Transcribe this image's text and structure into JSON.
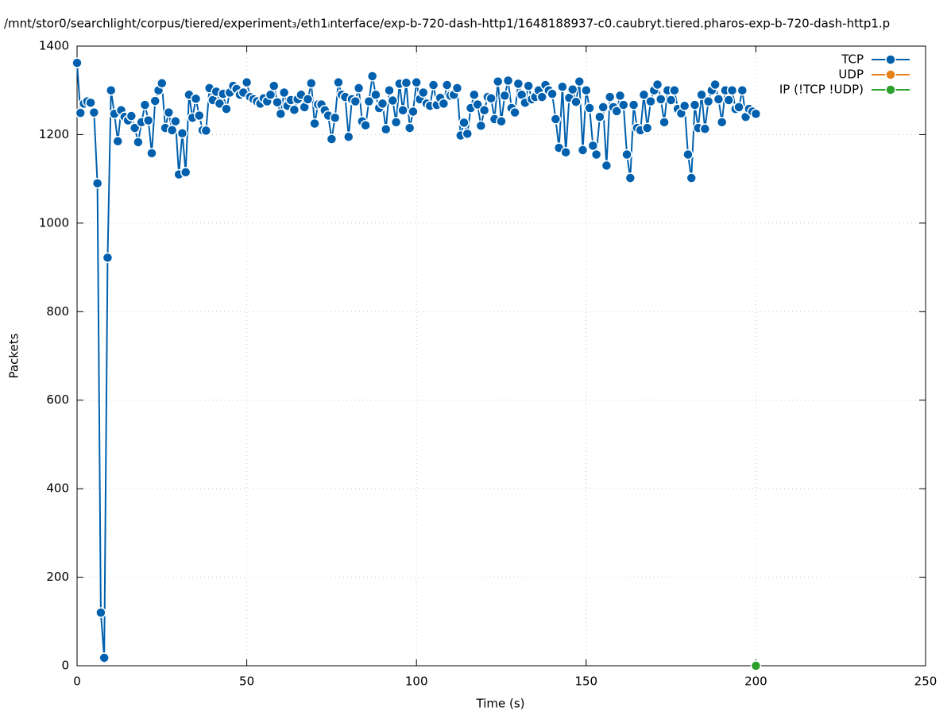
{
  "chart_data": {
    "type": "line",
    "title": "/mnt/stor0/searchlight/corpus/tiered/experiment₃/eth1ᵢnterface/exp-b-720-dash-http1/1648188937-c0.caubryt.tiered.pharos-exp-b-720-dash-http1.p",
    "x_label": "Time (s)",
    "y_label": "Packets",
    "xlim": [
      0,
      250
    ],
    "xticks": [
      0,
      50,
      100,
      150,
      200,
      250
    ],
    "ylim": [
      0,
      1400
    ],
    "yticks": [
      0,
      200,
      400,
      600,
      800,
      1000,
      1200,
      1400
    ],
    "grid": true,
    "legend": "top-right",
    "series": [
      {
        "name": "TCP",
        "color": "#0060ad",
        "x": [
          0,
          1,
          2,
          3,
          4,
          5,
          6,
          7,
          8,
          9,
          10,
          11,
          12,
          13,
          14,
          15,
          16,
          17,
          18,
          19,
          20,
          21,
          22,
          23,
          24,
          25,
          26,
          27,
          28,
          29,
          30,
          31,
          32,
          33,
          34,
          35,
          36,
          37,
          38,
          39,
          40,
          41,
          42,
          43,
          44,
          45,
          46,
          47,
          48,
          49,
          50,
          51,
          52,
          53,
          54,
          55,
          56,
          57,
          58,
          59,
          60,
          61,
          62,
          63,
          64,
          65,
          66,
          67,
          68,
          69,
          70,
          71,
          72,
          73,
          74,
          75,
          76,
          77,
          78,
          79,
          80,
          81,
          82,
          83,
          84,
          85,
          86,
          87,
          88,
          89,
          90,
          91,
          92,
          93,
          94,
          95,
          96,
          97,
          98,
          99,
          100,
          101,
          102,
          103,
          104,
          105,
          106,
          107,
          108,
          109,
          110,
          111,
          112,
          113,
          114,
          115,
          116,
          117,
          118,
          119,
          120,
          121,
          122,
          123,
          124,
          125,
          126,
          127,
          128,
          129,
          130,
          131,
          132,
          133,
          134,
          135,
          136,
          137,
          138,
          139,
          140,
          141,
          142,
          143,
          144,
          145,
          146,
          147,
          148,
          149,
          150,
          151,
          152,
          153,
          154,
          155,
          156,
          157,
          158,
          159,
          160,
          161,
          162,
          163,
          164,
          165,
          166,
          167,
          168,
          169,
          170,
          171,
          172,
          173,
          174,
          175,
          176,
          177,
          178,
          179,
          180,
          181,
          182,
          183,
          184,
          185,
          186,
          187,
          188,
          189,
          190,
          191,
          192,
          193,
          194,
          195,
          196,
          197,
          198,
          199,
          200
        ],
        "values": [
          1362,
          1249,
          1270,
          1275,
          1272,
          1250,
          1090,
          120,
          18,
          922,
          1300,
          1247,
          1185,
          1255,
          1240,
          1232,
          1242,
          1215,
          1183,
          1228,
          1267,
          1232,
          1158,
          1276,
          1300,
          1316,
          1215,
          1250,
          1210,
          1230,
          1110,
          1203,
          1115,
          1290,
          1238,
          1281,
          1243,
          1210,
          1209,
          1305,
          1278,
          1297,
          1270,
          1292,
          1258,
          1295,
          1310,
          1303,
          1290,
          1295,
          1318,
          1285,
          1280,
          1275,
          1270,
          1282,
          1275,
          1290,
          1310,
          1273,
          1247,
          1295,
          1265,
          1278,
          1256,
          1280,
          1290,
          1262,
          1280,
          1316,
          1225,
          1268,
          1268,
          1255,
          1243,
          1190,
          1238,
          1318,
          1290,
          1285,
          1195,
          1280,
          1275,
          1305,
          1230,
          1221,
          1275,
          1332,
          1290,
          1260,
          1270,
          1212,
          1300,
          1277,
          1228,
          1315,
          1255,
          1317,
          1215,
          1252,
          1318,
          1280,
          1295,
          1270,
          1265,
          1312,
          1267,
          1283,
          1270,
          1312,
          1288,
          1290,
          1305,
          1198,
          1227,
          1202,
          1260,
          1290,
          1268,
          1220,
          1255,
          1285,
          1282,
          1235,
          1320,
          1230,
          1288,
          1322,
          1260,
          1250,
          1315,
          1290,
          1272,
          1310,
          1280,
          1285,
          1300,
          1285,
          1312,
          1300,
          1292,
          1235,
          1170,
          1308,
          1160,
          1283,
          1302,
          1274,
          1320,
          1165,
          1300,
          1260,
          1175,
          1155,
          1240,
          1262,
          1130,
          1285,
          1262,
          1253,
          1288,
          1267,
          1155,
          1102,
          1267,
          1215,
          1210,
          1290,
          1215,
          1275,
          1300,
          1313,
          1280,
          1228,
          1300,
          1278,
          1300,
          1258,
          1248,
          1265,
          1155,
          1102,
          1267,
          1215,
          1290,
          1213,
          1275,
          1300,
          1313,
          1280,
          1228,
          1300,
          1278,
          1300,
          1258,
          1262,
          1300,
          1240,
          1258,
          1252,
          1247
        ]
      },
      {
        "name": "UDP",
        "color": "#e8801a",
        "x": [],
        "values": []
      },
      {
        "name": "IP (!TCP  !UDP)",
        "color": "#2ca02c",
        "x": [
          200
        ],
        "values": [
          0
        ]
      }
    ]
  }
}
